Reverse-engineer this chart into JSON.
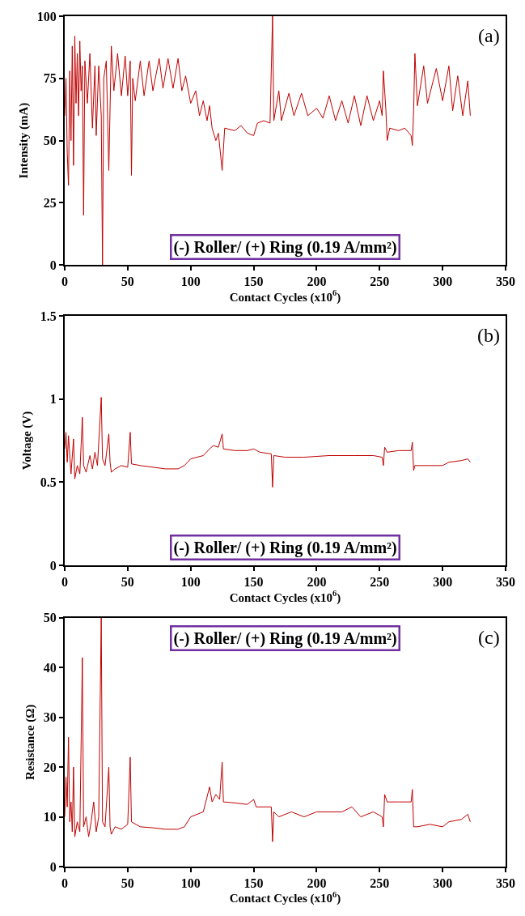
{
  "chart_data": [
    {
      "type": "line",
      "xlabel": "Contact Cycles (x10$^{6}$)",
      "ylabel": "Intensity (mA)",
      "annotations": [
        "(a)",
        "(-) Roller/ (+) Ring (0.19 A/mm²)"
      ],
      "color": "#c00000",
      "xlim": [
        0,
        350
      ],
      "xticks": [
        0,
        50,
        100,
        150,
        200,
        250,
        300,
        350
      ],
      "ylim": [
        0,
        100
      ],
      "yticks": [
        0,
        25,
        50,
        75,
        100
      ],
      "x": [
        0,
        1,
        2,
        3,
        4,
        5,
        6,
        7,
        8,
        9,
        10,
        11,
        12,
        13,
        14,
        15,
        16,
        18,
        20,
        22,
        24,
        25,
        27,
        29,
        30,
        31,
        33,
        35,
        37,
        39,
        42,
        45,
        48,
        50,
        52,
        53,
        54,
        56,
        60,
        63,
        67,
        70,
        75,
        78,
        82,
        86,
        90,
        93,
        96,
        100,
        104,
        107,
        110,
        113,
        115,
        117,
        120,
        122,
        125,
        127,
        135,
        140,
        145,
        150,
        153,
        158,
        163,
        165,
        166,
        170,
        172,
        178,
        182,
        188,
        193,
        200,
        205,
        210,
        215,
        220,
        225,
        230,
        235,
        240,
        245,
        250,
        252,
        253,
        255,
        256,
        258,
        265,
        270,
        275,
        276,
        277,
        278,
        280,
        285,
        288,
        295,
        300,
        305,
        308,
        312,
        316,
        320,
        322
      ],
      "values": [
        60,
        75,
        45,
        32,
        78,
        50,
        88,
        40,
        92,
        65,
        85,
        60,
        90,
        70,
        80,
        20,
        82,
        65,
        85,
        55,
        80,
        52,
        80,
        60,
        0,
        75,
        82,
        38,
        88,
        70,
        85,
        68,
        84,
        68,
        82,
        36,
        75,
        66,
        82,
        68,
        82,
        70,
        83,
        71,
        83,
        71,
        83,
        70,
        76,
        65,
        70,
        60,
        66,
        58,
        64,
        55,
        50,
        53,
        38,
        55,
        54,
        56,
        53,
        52,
        57,
        58,
        57,
        100,
        58,
        70,
        58,
        69,
        60,
        69,
        60,
        63,
        59,
        68,
        58,
        66,
        57,
        68,
        56,
        68,
        58,
        66,
        60,
        78,
        62,
        50,
        55,
        54,
        55,
        52,
        48,
        62,
        85,
        64,
        80,
        65,
        79,
        66,
        80,
        62,
        76,
        60,
        74,
        60
      ]
    },
    {
      "type": "line",
      "xlabel": "Contact Cycles (x10$^{6}$)",
      "ylabel": "Voltage (V)",
      "annotations": [
        "(b)",
        "(-) Roller/ (+) Ring (0.19 A/mm²)"
      ],
      "color": "#c00000",
      "xlim": [
        0,
        350
      ],
      "xticks": [
        0,
        50,
        100,
        150,
        200,
        250,
        300,
        350
      ],
      "ylim": [
        0,
        1.5
      ],
      "yticks": [
        0,
        0.5,
        1,
        1.5
      ],
      "x": [
        0,
        1,
        2,
        3,
        5,
        7,
        8,
        10,
        12,
        14,
        15,
        17,
        20,
        22,
        24,
        26,
        29,
        30,
        32,
        35,
        36,
        37,
        40,
        45,
        50,
        52,
        53,
        60,
        70,
        80,
        90,
        95,
        100,
        110,
        115,
        118,
        122,
        125,
        126,
        135,
        145,
        150,
        155,
        164,
        165,
        166,
        175,
        190,
        210,
        230,
        245,
        252,
        253,
        254,
        256,
        265,
        275,
        276,
        277,
        278,
        290,
        300,
        305,
        315,
        320,
        322
      ],
      "values": [
        0.7,
        0.8,
        0.62,
        0.78,
        0.55,
        0.76,
        0.52,
        0.6,
        0.55,
        0.89,
        0.6,
        0.56,
        0.66,
        0.58,
        0.68,
        0.6,
        1.01,
        0.64,
        0.6,
        0.79,
        0.62,
        0.56,
        0.58,
        0.6,
        0.59,
        0.8,
        0.61,
        0.6,
        0.59,
        0.58,
        0.58,
        0.6,
        0.64,
        0.66,
        0.7,
        0.72,
        0.71,
        0.79,
        0.7,
        0.69,
        0.69,
        0.7,
        0.68,
        0.67,
        0.47,
        0.66,
        0.65,
        0.65,
        0.66,
        0.66,
        0.66,
        0.65,
        0.6,
        0.71,
        0.68,
        0.69,
        0.69,
        0.74,
        0.57,
        0.6,
        0.6,
        0.6,
        0.62,
        0.63,
        0.64,
        0.62
      ]
    },
    {
      "type": "line",
      "xlabel": "Contact Cycles (x10$^{6}$)",
      "ylabel": "Resistance (Ω)",
      "annotations": [
        "(c)",
        "(-) Roller/ (+) Ring (0.19 A/mm²)"
      ],
      "color": "#c00000",
      "xlim": [
        0,
        350
      ],
      "xticks": [
        0,
        50,
        100,
        150,
        200,
        250,
        300,
        350
      ],
      "ylim": [
        0,
        50
      ],
      "yticks": [
        0,
        10,
        20,
        30,
        40,
        50
      ],
      "x": [
        0,
        1,
        2,
        3,
        4,
        5,
        6,
        7,
        8,
        10,
        12,
        14,
        15,
        17,
        19,
        21,
        23,
        25,
        27,
        29,
        30,
        32,
        35,
        36,
        37,
        40,
        45,
        50,
        52,
        53,
        60,
        70,
        80,
        90,
        95,
        100,
        110,
        115,
        117,
        120,
        123,
        125,
        126,
        135,
        145,
        150,
        152,
        164,
        165,
        166,
        170,
        180,
        190,
        200,
        210,
        220,
        228,
        235,
        245,
        252,
        253,
        254,
        256,
        265,
        275,
        276,
        277,
        280,
        290,
        300,
        305,
        315,
        320,
        322
      ],
      "values": [
        10,
        18,
        12,
        26,
        9,
        13,
        7,
        20,
        6,
        9,
        7,
        42,
        8,
        10,
        6,
        9,
        13,
        7,
        10,
        50,
        9,
        8,
        20,
        8,
        6.5,
        8,
        7.5,
        8.5,
        22,
        9,
        8,
        7.8,
        7.5,
        7.5,
        8,
        10,
        11,
        16,
        13,
        14.5,
        13.5,
        21,
        13,
        12.8,
        12.5,
        13.5,
        12,
        12,
        5,
        11,
        10,
        11,
        10,
        11,
        11,
        11,
        12,
        10,
        11,
        10,
        8,
        14.5,
        13,
        13,
        13,
        15.5,
        8,
        8,
        8.5,
        8,
        9,
        9.5,
        10.5,
        9
      ]
    }
  ]
}
